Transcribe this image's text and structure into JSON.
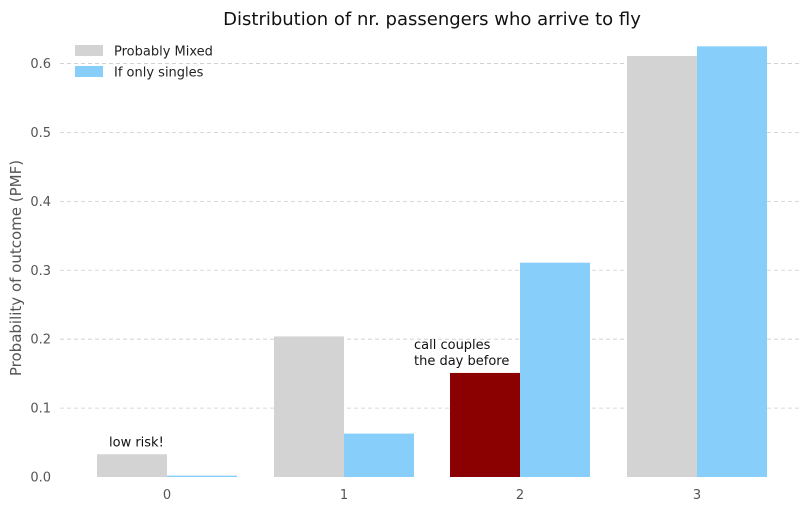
{
  "chart_data": {
    "type": "bar",
    "title": "Distribution of nr. passengers who arrive to fly",
    "xlabel": "",
    "ylabel": "Probability of outcome (PMF)",
    "categories": [
      "0",
      "1",
      "2",
      "3"
    ],
    "ylim": [
      0,
      0.64
    ],
    "yticks": [
      0.0,
      0.1,
      0.2,
      0.3,
      0.4,
      0.5,
      0.6
    ],
    "ytick_labels": [
      "0.0",
      "0.1",
      "0.2",
      "0.3",
      "0.4",
      "0.5",
      "0.6"
    ],
    "grid": "y-dashed",
    "legend_position": "top-left",
    "series": [
      {
        "name": "Probably Mixed",
        "color": "#d3d3d3",
        "values": [
          0.033,
          0.204,
          0.151,
          0.611
        ],
        "highlight": {
          "index": 2,
          "color": "#8b0000"
        }
      },
      {
        "name": "If only singles",
        "color": "#87cefa",
        "values": [
          0.002,
          0.063,
          0.311,
          0.625
        ]
      }
    ],
    "annotations": [
      {
        "category": "0",
        "lines": [
          "low risk!"
        ]
      },
      {
        "category": "2",
        "lines": [
          "call couples",
          "the day before"
        ]
      }
    ]
  }
}
